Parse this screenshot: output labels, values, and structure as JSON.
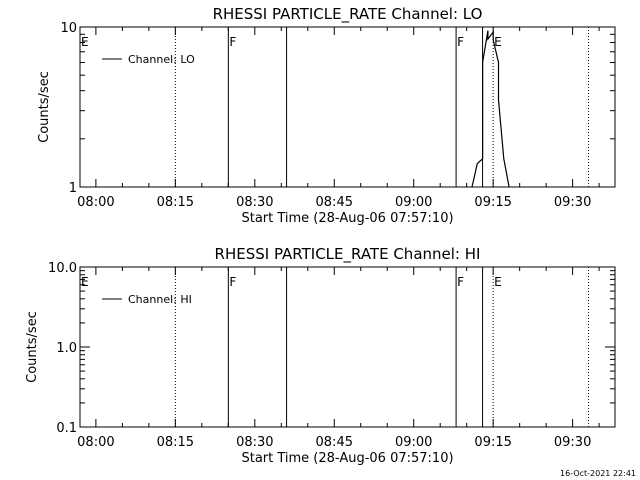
{
  "timestamp": "16-Oct-2021 22:41",
  "chart_data": [
    {
      "type": "line",
      "title": "RHESSI PARTICLE_RATE Channel: LO",
      "xlabel": "Start Time (28-Aug-06 07:57:10)",
      "ylabel": "Counts/sec",
      "x_range": [
        "07:57",
        "09:38"
      ],
      "x_ticks": [
        "08:00",
        "08:15",
        "08:30",
        "08:45",
        "09:00",
        "09:15",
        "09:30"
      ],
      "y_scale": "log",
      "ylim": [
        1,
        10
      ],
      "y_ticks": [
        {
          "value": 1,
          "label": "1"
        },
        {
          "value": 10,
          "label": "10"
        }
      ],
      "legend": {
        "label": "Channel: LO",
        "placement": "top-left"
      },
      "markers": [
        {
          "time": "07:57",
          "label": "E",
          "style": "none"
        },
        {
          "time": "08:15",
          "label": "",
          "style": "dotted"
        },
        {
          "time": "08:25",
          "label": "F",
          "style": "solid"
        },
        {
          "time": "08:36",
          "label": "",
          "style": "solid"
        },
        {
          "time": "09:08",
          "label": "F",
          "style": "solid"
        },
        {
          "time": "09:13",
          "label": "",
          "style": "solid"
        },
        {
          "time": "09:15",
          "label": "E",
          "style": "dotted"
        },
        {
          "time": "09:33",
          "label": "",
          "style": "dotted"
        }
      ],
      "series": [
        {
          "x": [
            "09:11",
            "09:12",
            "09:13",
            "09:13",
            "09:14",
            "09:14",
            "09:15",
            "09:15",
            "09:16",
            "09:16",
            "09:17",
            "09:18"
          ],
          "y": [
            1,
            1.4,
            1.5,
            6,
            9.5,
            8.4,
            9.3,
            8.3,
            6,
            3.5,
            1.5,
            1
          ]
        }
      ]
    },
    {
      "type": "line",
      "title": "RHESSI PARTICLE_RATE Channel: HI",
      "xlabel": "Start Time (28-Aug-06 07:57:10)",
      "ylabel": "Counts/sec",
      "x_range": [
        "07:57",
        "09:38"
      ],
      "x_ticks": [
        "08:00",
        "08:15",
        "08:30",
        "08:45",
        "09:00",
        "09:15",
        "09:30"
      ],
      "y_scale": "log",
      "ylim": [
        0.1,
        10
      ],
      "y_ticks": [
        {
          "value": 0.1,
          "label": "0.1"
        },
        {
          "value": 1,
          "label": "1.0"
        },
        {
          "value": 10,
          "label": "10.0"
        }
      ],
      "legend": {
        "label": "Channel: HI",
        "placement": "top-left"
      },
      "markers": [
        {
          "time": "07:57",
          "label": "E",
          "style": "none"
        },
        {
          "time": "08:15",
          "label": "",
          "style": "dotted"
        },
        {
          "time": "08:25",
          "label": "F",
          "style": "solid"
        },
        {
          "time": "08:36",
          "label": "",
          "style": "solid"
        },
        {
          "time": "09:08",
          "label": "F",
          "style": "solid"
        },
        {
          "time": "09:13",
          "label": "",
          "style": "solid"
        },
        {
          "time": "09:15",
          "label": "E",
          "style": "dotted"
        },
        {
          "time": "09:33",
          "label": "",
          "style": "dotted"
        }
      ],
      "series": [
        {
          "x": [],
          "y": []
        }
      ]
    }
  ]
}
